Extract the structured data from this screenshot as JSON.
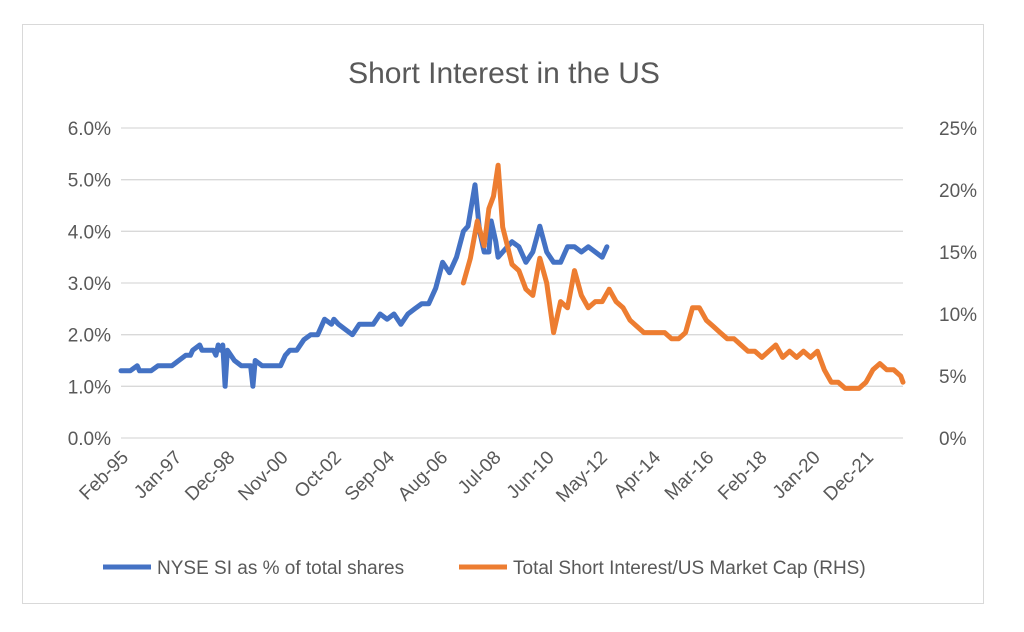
{
  "chart_data": {
    "type": "line",
    "title": "Short Interest in the US",
    "xlabel": "",
    "ylabel_left": "",
    "ylabel_right": "",
    "grid": true,
    "legend_position": "bottom",
    "colors": {
      "series1": "#4472C4",
      "series2": "#ED7D31",
      "grid": "#d9d9d9",
      "text": "#595959"
    },
    "x_axis": {
      "type": "date",
      "range": [
        "1995-02",
        "2023-04"
      ],
      "tick_labels": [
        "Feb-95",
        "Jan-97",
        "Dec-98",
        "Nov-00",
        "Oct-02",
        "Sep-04",
        "Aug-06",
        "Jul-08",
        "Jun-10",
        "May-12",
        "Apr-14",
        "Mar-16",
        "Feb-18",
        "Jan-20",
        "Dec-21"
      ],
      "tick_dates": [
        "1995-02",
        "1997-01",
        "1998-12",
        "2000-11",
        "2002-10",
        "2004-09",
        "2006-08",
        "2008-07",
        "2010-06",
        "2012-05",
        "2014-04",
        "2016-03",
        "2018-02",
        "2020-01",
        "2021-12"
      ]
    },
    "y_left": {
      "ylim": [
        0,
        6
      ],
      "ticks": [
        0,
        1,
        2,
        3,
        4,
        5,
        6
      ],
      "tick_labels": [
        "0.0%",
        "1.0%",
        "2.0%",
        "3.0%",
        "4.0%",
        "5.0%",
        "6.0%"
      ]
    },
    "y_right": {
      "ylim": [
        0,
        25
      ],
      "ticks": [
        0,
        5,
        10,
        15,
        20,
        25
      ],
      "tick_labels": [
        "0%",
        "5%",
        "10%",
        "15%",
        "20%",
        "25%"
      ]
    },
    "series": [
      {
        "name": "NYSE SI as % of total shares",
        "axis": "left",
        "x": [
          "1995-02",
          "1995-06",
          "1995-09",
          "1995-10",
          "1996-03",
          "1996-06",
          "1996-12",
          "1997-03",
          "1997-06",
          "1997-08",
          "1997-09",
          "1997-12",
          "1998-01",
          "1998-06",
          "1998-07",
          "1998-08",
          "1998-09",
          "1998-10",
          "1998-11",
          "1998-12",
          "1999-03",
          "1999-06",
          "1999-10",
          "1999-11",
          "1999-12",
          "2000-03",
          "2000-06",
          "2000-11",
          "2001-01",
          "2001-03",
          "2001-06",
          "2001-09",
          "2001-12",
          "2002-03",
          "2002-06",
          "2002-09",
          "2002-10",
          "2002-12",
          "2003-03",
          "2003-06",
          "2003-09",
          "2003-12",
          "2004-03",
          "2004-06",
          "2004-09",
          "2004-12",
          "2005-03",
          "2005-06",
          "2005-09",
          "2005-12",
          "2006-03",
          "2006-06",
          "2006-09",
          "2006-12",
          "2007-03",
          "2007-06",
          "2007-08",
          "2007-11",
          "2008-01",
          "2008-03",
          "2008-05",
          "2008-06",
          "2008-08",
          "2008-09",
          "2008-11",
          "2009-01",
          "2009-03",
          "2009-06",
          "2009-09",
          "2009-12",
          "2010-03",
          "2010-06",
          "2010-09",
          "2010-12",
          "2011-03",
          "2011-06",
          "2011-09",
          "2011-12",
          "2012-03",
          "2012-06",
          "2012-08"
        ],
        "values": [
          1.3,
          1.3,
          1.4,
          1.3,
          1.3,
          1.4,
          1.4,
          1.5,
          1.6,
          1.6,
          1.7,
          1.8,
          1.7,
          1.7,
          1.6,
          1.8,
          1.7,
          1.8,
          1.0,
          1.7,
          1.5,
          1.4,
          1.4,
          1.0,
          1.5,
          1.4,
          1.4,
          1.4,
          1.6,
          1.7,
          1.7,
          1.9,
          2.0,
          2.0,
          2.3,
          2.2,
          2.3,
          2.2,
          2.1,
          2.0,
          2.2,
          2.2,
          2.2,
          2.4,
          2.3,
          2.4,
          2.2,
          2.4,
          2.5,
          2.6,
          2.6,
          2.9,
          3.4,
          3.2,
          3.5,
          4.0,
          4.1,
          4.9,
          4.0,
          3.6,
          3.6,
          4.2,
          3.8,
          3.5,
          3.6,
          3.7,
          3.8,
          3.7,
          3.4,
          3.6,
          4.1,
          3.6,
          3.4,
          3.4,
          3.7,
          3.7,
          3.6,
          3.7,
          3.6,
          3.5,
          3.7
        ]
      },
      {
        "name": "Total Short Interest/US Market Cap (RHS)",
        "axis": "right",
        "x": [
          "2007-06",
          "2007-09",
          "2007-12",
          "2008-03",
          "2008-05",
          "2008-07",
          "2008-09",
          "2008-11",
          "2009-01",
          "2009-03",
          "2009-06",
          "2009-09",
          "2009-12",
          "2010-03",
          "2010-06",
          "2010-09",
          "2010-12",
          "2011-03",
          "2011-06",
          "2011-09",
          "2011-12",
          "2012-03",
          "2012-06",
          "2012-09",
          "2012-12",
          "2013-03",
          "2013-06",
          "2013-09",
          "2013-12",
          "2014-03",
          "2014-06",
          "2014-09",
          "2014-12",
          "2015-03",
          "2015-06",
          "2015-09",
          "2015-12",
          "2016-03",
          "2016-06",
          "2016-09",
          "2016-12",
          "2017-03",
          "2017-06",
          "2017-09",
          "2017-12",
          "2018-03",
          "2018-06",
          "2018-09",
          "2018-12",
          "2019-03",
          "2019-06",
          "2019-09",
          "2019-12",
          "2020-03",
          "2020-06",
          "2020-09",
          "2020-12",
          "2021-03",
          "2021-06",
          "2021-09",
          "2021-12",
          "2022-03",
          "2022-06",
          "2022-09",
          "2022-12",
          "2023-03",
          "2023-04"
        ],
        "values": [
          12.5,
          14.5,
          17.5,
          15.5,
          18.5,
          19.5,
          22.0,
          17.0,
          15.5,
          14.0,
          13.5,
          12.0,
          11.5,
          14.5,
          12.5,
          8.5,
          11.0,
          10.5,
          13.5,
          11.5,
          10.5,
          11.0,
          11.0,
          12.0,
          11.0,
          10.5,
          9.5,
          9.0,
          8.5,
          8.5,
          8.5,
          8.5,
          8.0,
          8.0,
          8.5,
          10.5,
          10.5,
          9.5,
          9.0,
          8.5,
          8.0,
          8.0,
          7.5,
          7.0,
          7.0,
          6.5,
          7.0,
          7.5,
          6.5,
          7.0,
          6.5,
          7.0,
          6.5,
          7.0,
          5.5,
          4.5,
          4.5,
          4.0,
          4.0,
          4.0,
          4.5,
          5.5,
          6.0,
          5.5,
          5.5,
          5.0,
          4.5
        ]
      }
    ]
  }
}
